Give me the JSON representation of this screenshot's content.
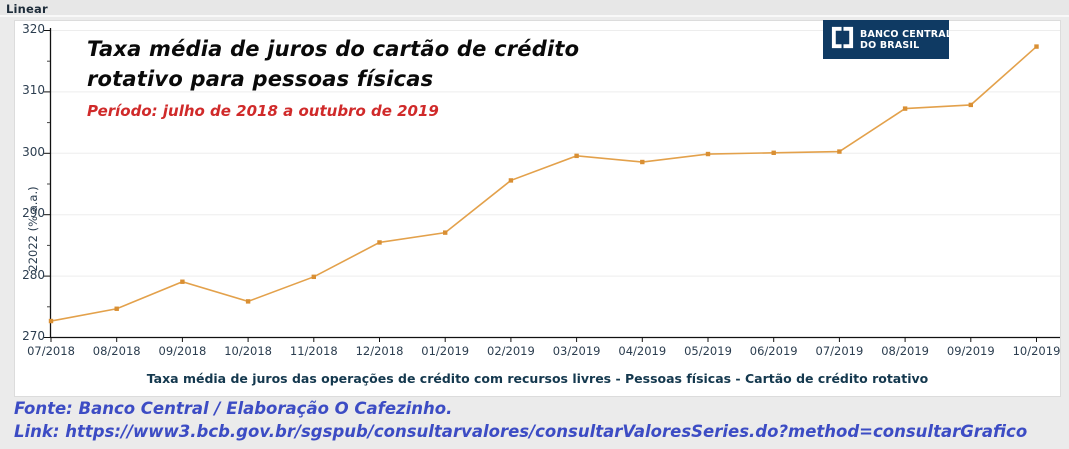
{
  "toolbar": {
    "mode_label": "Linear"
  },
  "chart": {
    "title_line1": "Taxa média de juros do cartão de crédito",
    "title_line2": "rotativo para pessoas físicas",
    "subtitle": "Período: julho de 2018 a outubro de 2019",
    "y_axis_title": "22022 (% a.a.)",
    "caption": "Taxa média de juros das operações de crédito com recursos livres - Pessoas físicas - Cartão de crédito rotativo"
  },
  "logo": {
    "line1": "BANCO CENTRAL",
    "line2": "DO BRASIL"
  },
  "footer": {
    "source": "Fonte: Banco Central / Elaboração O Cafezinho.",
    "link": "Link: https://www3.bcb.gov.br/sgspub/consultarvalores/consultarValoresSeries.do?method=consultarGrafico"
  },
  "colors": {
    "line": "#E3A14B",
    "marker": "#D98F33",
    "logo_bg": "#0F3A63",
    "subtitle_red": "#D02A2A",
    "footer_blue": "#3C4CC4",
    "axis": "#111111",
    "gridline": "#EDEDED",
    "panel_bg": "#FFFFFF",
    "page_bg": "#EBEBEB"
  },
  "chart_data": {
    "type": "line",
    "title": "Taxa média de juros do cartão de crédito rotativo para pessoas físicas",
    "subtitle": "Período: julho de 2018 a outubro de 2019",
    "xlabel": "",
    "ylabel": "22022 (% a.a.)",
    "x": [
      "07/2018",
      "08/2018",
      "09/2018",
      "10/2018",
      "11/2018",
      "12/2018",
      "01/2019",
      "02/2019",
      "03/2019",
      "04/2019",
      "05/2019",
      "06/2019",
      "07/2019",
      "08/2019",
      "09/2019",
      "10/2019"
    ],
    "series": [
      {
        "name": "Taxa média de juros das operações de crédito com recursos livres - Pessoas físicas - Cartão de crédito rotativo",
        "values": [
          272.6,
          274.6,
          279.0,
          275.8,
          279.8,
          285.4,
          287.0,
          295.5,
          299.5,
          298.5,
          299.8,
          300.0,
          300.2,
          307.2,
          307.8,
          317.3
        ]
      }
    ],
    "ylim": [
      270,
      320
    ],
    "yticks": [
      270,
      280,
      290,
      300,
      310,
      320
    ],
    "grid": "horizontal",
    "legend": "none",
    "line_color": "#E3A14B",
    "marker_color": "#D98F33",
    "marker": "square"
  }
}
